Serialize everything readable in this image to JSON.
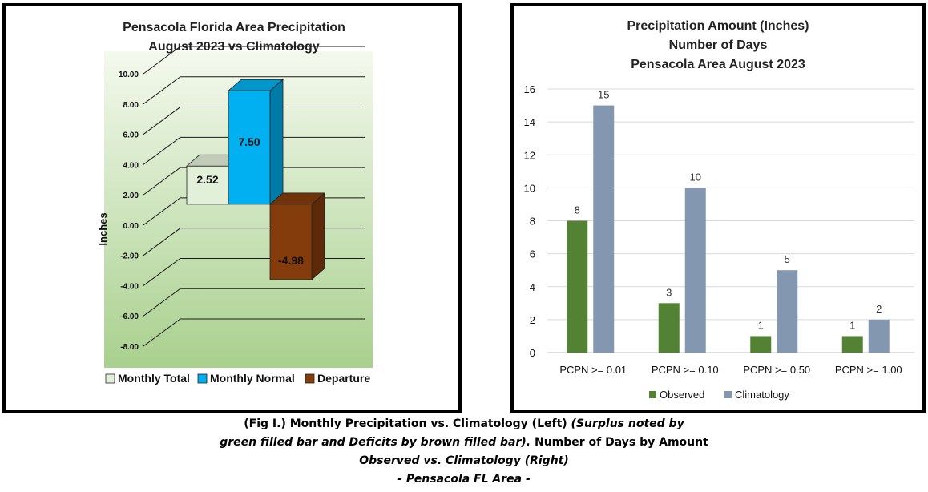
{
  "chart_data": [
    {
      "type": "bar",
      "title": [
        "Pensacola Florida Area Precipitation",
        "August 2023 vs Climatology"
      ],
      "ylabel": "Inches",
      "ylim": [
        -8,
        10
      ],
      "yticks": [
        "10.00",
        "8.00",
        "6.00",
        "4.00",
        "2.00",
        "0.00",
        "-2.00",
        "-4.00",
        "-6.00",
        "-8.00"
      ],
      "series": [
        {
          "name": "Monthly Total",
          "value": 2.52,
          "label": "2.52",
          "color": "#e2f0d9"
        },
        {
          "name": "Monthly Normal",
          "value": 7.5,
          "label": "7.50",
          "color": "#00b0f0"
        },
        {
          "name": "Departure",
          "value": -4.98,
          "label": "-4.98",
          "color": "#843c0c"
        }
      ],
      "legend": "bottom",
      "grid": true,
      "three_d": true
    },
    {
      "type": "bar",
      "title": [
        "Precipitation Amount (Inches)",
        "Number of Days",
        "Pensacola Area August 2023"
      ],
      "categories": [
        "PCPN >= 0.01",
        "PCPN >= 0.10",
        "PCPN >= 0.50",
        "PCPN >= 1.00"
      ],
      "ylim": [
        0,
        16
      ],
      "yticks": [
        "0",
        "2",
        "4",
        "6",
        "8",
        "10",
        "12",
        "14",
        "16"
      ],
      "series": [
        {
          "name": "Observed",
          "values": [
            8,
            3,
            1,
            1
          ],
          "labels": [
            "8",
            "3",
            "1",
            "1"
          ],
          "color": "#548235"
        },
        {
          "name": "Climatology",
          "values": [
            15,
            10,
            5,
            2
          ],
          "labels": [
            "15",
            "10",
            "5",
            "2"
          ],
          "color": "#8497b0"
        }
      ],
      "legend": "bottom",
      "grid": true
    }
  ],
  "caption": {
    "line1_bold": "(Fig I.) Monthly Precipitation vs. Climatology (Left) ",
    "line1_italic": "(Surplus noted by",
    "line2_italic": "green filled bar and Deficits by brown filled bar).",
    "line2_bold": "  Number of Days by Amount",
    "line3_italic": "Observed vs. Climatology (Right)",
    "line4_italic": "- Pensacola FL Area -"
  }
}
